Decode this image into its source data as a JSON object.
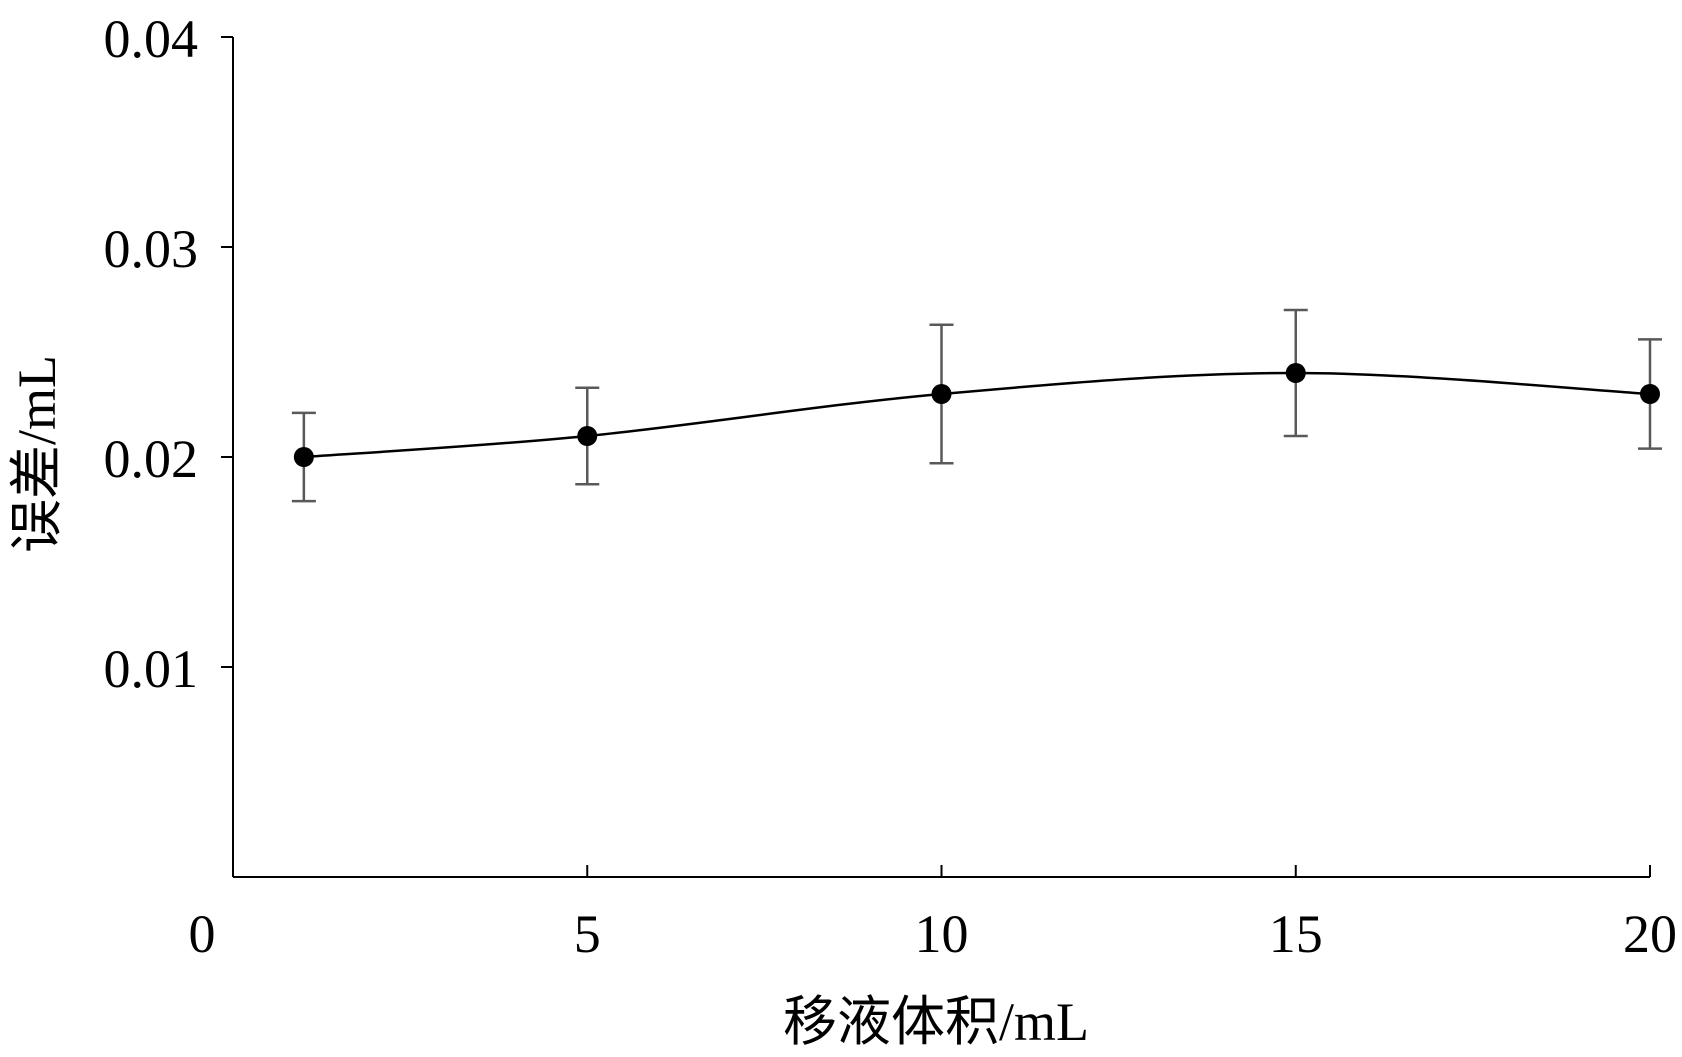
{
  "chart_data": {
    "type": "line",
    "title": "",
    "xlabel": "移液体积/mL",
    "ylabel": "误差/mL",
    "xlim": [
      0,
      20
    ],
    "ylim": [
      0,
      0.04
    ],
    "x_ticks": [
      "0",
      "5",
      "10",
      "15",
      "20"
    ],
    "y_ticks": [
      "0.01",
      "0.02",
      "0.03",
      "0.04"
    ],
    "grid": false,
    "smooth": true,
    "error_bars": true,
    "series": [
      {
        "x": [
          1,
          5,
          10,
          15,
          20
        ],
        "y": [
          0.02,
          0.021,
          0.023,
          0.024,
          0.023
        ],
        "error_low": [
          0.0021,
          0.0023,
          0.0033,
          0.003,
          0.0026
        ],
        "error_high": [
          0.0021,
          0.0023,
          0.0033,
          0.003,
          0.0026
        ]
      }
    ]
  },
  "colors": {
    "line": "#000000",
    "marker": "#000000",
    "error_bar": "#595959",
    "axis": "#000000"
  }
}
